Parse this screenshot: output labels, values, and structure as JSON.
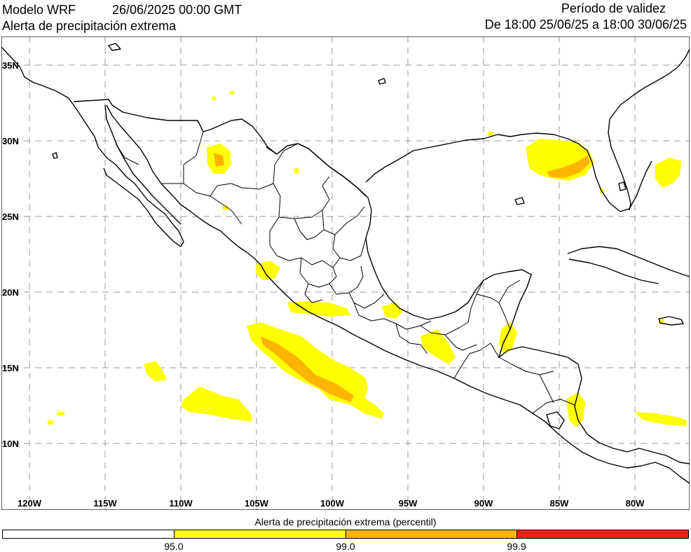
{
  "header": {
    "model": "Modelo WRF",
    "datetime": "26/06/2025 00:00 GMT",
    "product": "Alerta de precipitación extrema",
    "validity_title": "Período de validez",
    "validity_range": "De 18:00 25/06/25 a 18:00 30/06/25"
  },
  "map": {
    "lat_labels": [
      "35N",
      "30N",
      "25N",
      "20N",
      "15N",
      "10N"
    ],
    "lon_labels": [
      "120W",
      "115W",
      "110W",
      "105W",
      "100W",
      "95W",
      "90W",
      "85W",
      "80W"
    ],
    "grid": true,
    "colors": {
      "land_border": "#000000",
      "grid": "#9a9a9a",
      "p95": "#ffff00",
      "p99": "#ffb400",
      "p999": "#ff0000"
    }
  },
  "legend": {
    "title": "Alerta de precipitación extrema (percentil)",
    "ticks": [
      "95.0",
      "99.0",
      "99.9"
    ],
    "colors": [
      "#ffffff",
      "#ffff00",
      "#ffb400",
      "#ff1a1a"
    ]
  }
}
